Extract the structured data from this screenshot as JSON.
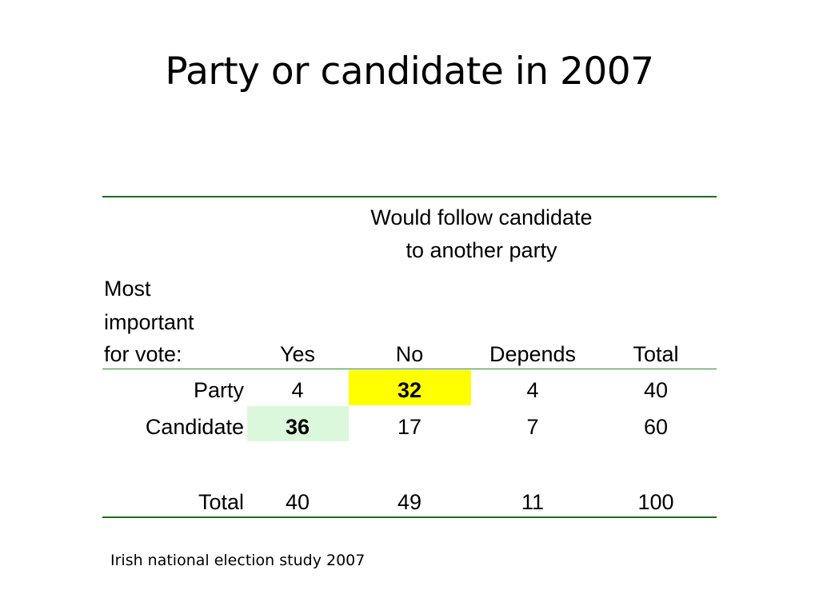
{
  "title": "Party or candidate in 2007",
  "table": {
    "column_group_header_line1": "Would follow candidate",
    "column_group_header_line2": "to another party",
    "row_header_line1": "Most",
    "row_header_line2": "important",
    "row_header_line3": "for vote:",
    "columns": [
      "Yes",
      "No",
      "Depends",
      "Total"
    ],
    "rows": [
      {
        "label": "Party",
        "values": [
          "4",
          "32",
          "4",
          "40"
        ]
      },
      {
        "label": "Candidate",
        "values": [
          "36",
          "17",
          "7",
          "60"
        ]
      },
      {
        "label": "Total",
        "values": [
          "40",
          "49",
          "11",
          "100"
        ]
      }
    ],
    "highlight_colors": {
      "yellow": "#ffff00",
      "green": "#dcf8dc"
    },
    "rule_color": "#1f6b1f"
  },
  "source": "Irish national election study 2007"
}
